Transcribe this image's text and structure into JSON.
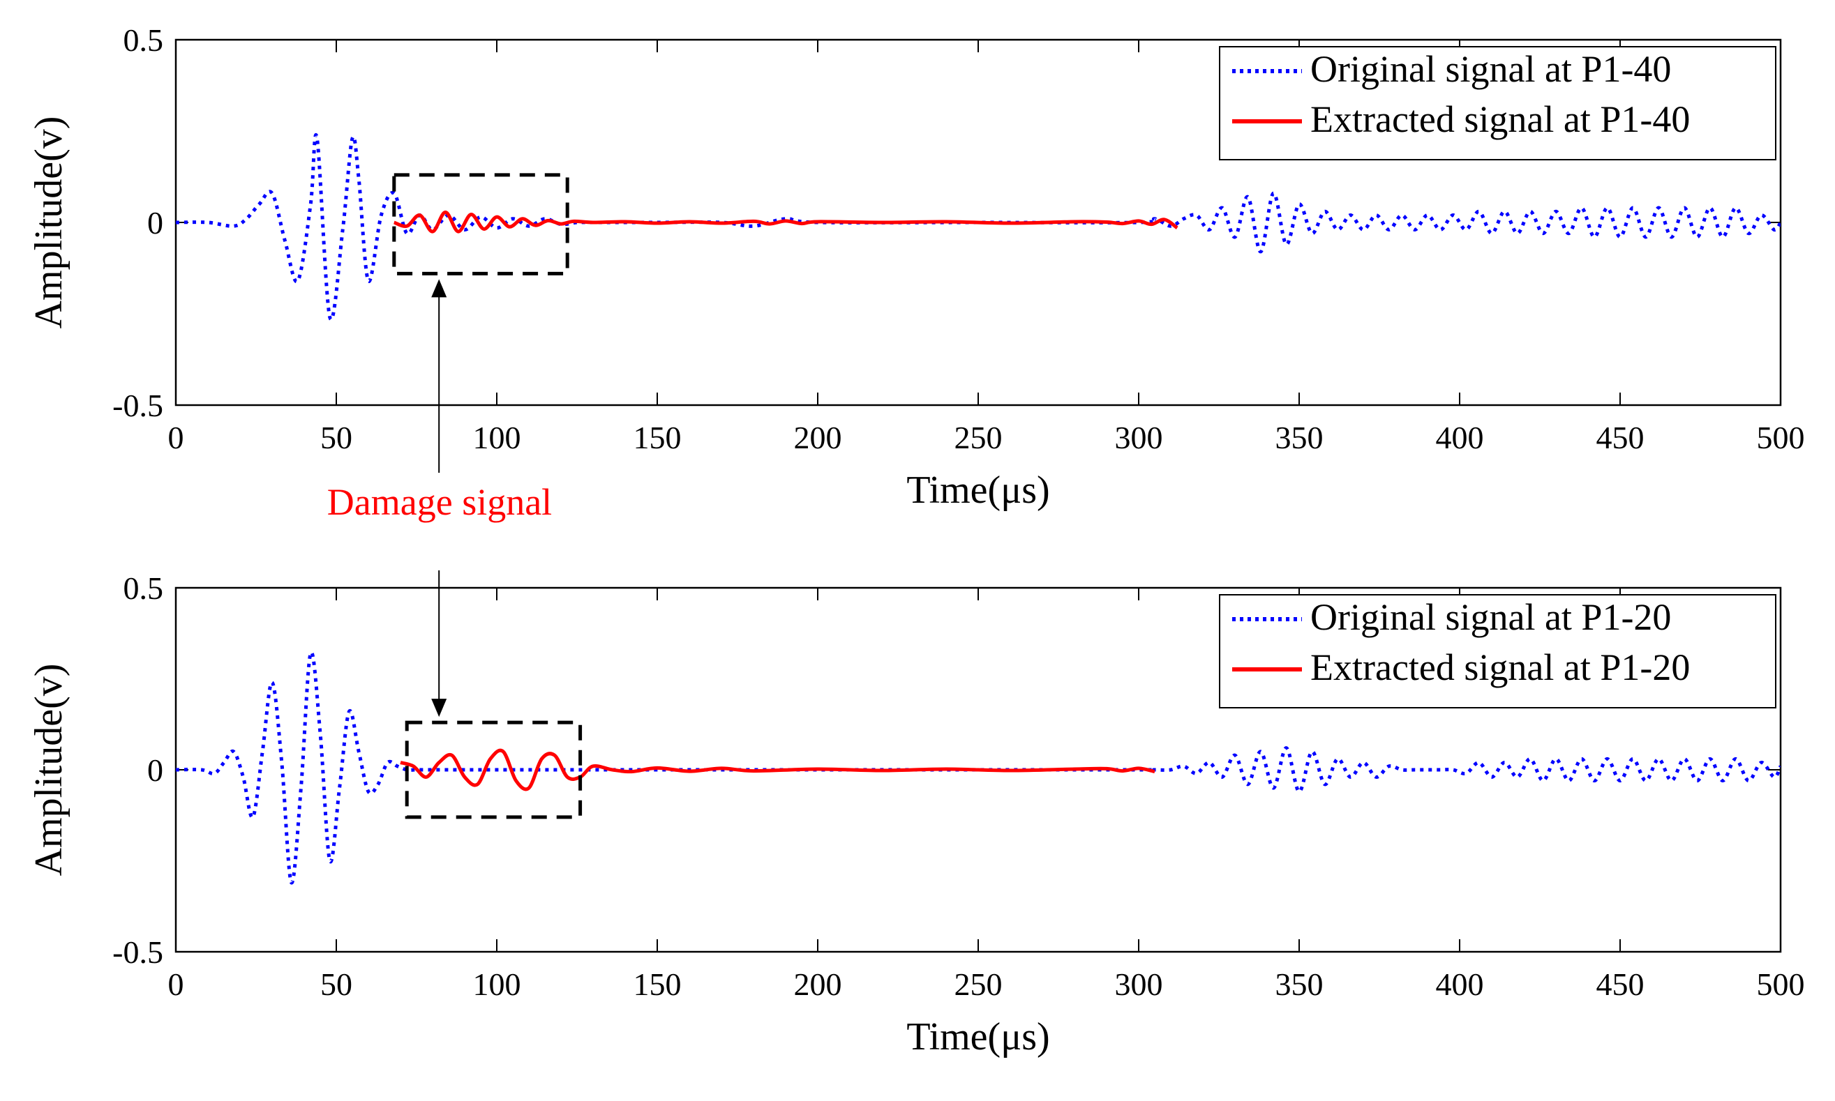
{
  "chart_data": [
    {
      "type": "line",
      "xlabel": "Time(μs)",
      "ylabel": "Amplitude(v)",
      "xlim": [
        0,
        500
      ],
      "ylim": [
        -0.5,
        0.5
      ],
      "x_ticks": [
        "0",
        "50",
        "100",
        "150",
        "200",
        "250",
        "300",
        "350",
        "400",
        "450",
        "500"
      ],
      "y_ticks": [
        "-0.5",
        "0",
        "0.5"
      ],
      "grid": false,
      "legend_position": "top-right",
      "series": [
        {
          "name": "Original signal at P1-40",
          "color": "#0000ff",
          "style": "dotted",
          "x": [
            0,
            10,
            18,
            22,
            26,
            30,
            34,
            38,
            42,
            44,
            48,
            52,
            55,
            57,
            60,
            64,
            68,
            72,
            76,
            80,
            85,
            90,
            95,
            100,
            105,
            110,
            115,
            120,
            125,
            130,
            150,
            170,
            180,
            190,
            200,
            250,
            300,
            305,
            310,
            314,
            318,
            322,
            326,
            330,
            334,
            338,
            342,
            346,
            350,
            354,
            358,
            362,
            366,
            370,
            374,
            378,
            382,
            386,
            390,
            394,
            398,
            402,
            406,
            410,
            414,
            418,
            422,
            426,
            430,
            434,
            438,
            442,
            446,
            450,
            454,
            458,
            462,
            466,
            470,
            474,
            478,
            482,
            486,
            490,
            494,
            498,
            500
          ],
          "y": [
            0,
            0,
            -0.01,
            0.01,
            0.05,
            0.08,
            -0.05,
            -0.16,
            0.05,
            0.23,
            -0.26,
            -0.02,
            0.23,
            0.12,
            -0.16,
            0.02,
            0.08,
            -0.03,
            0.02,
            -0.02,
            0.02,
            -0.02,
            0.015,
            -0.015,
            0.01,
            -0.01,
            0.01,
            -0.005,
            0,
            0,
            0,
            0,
            -0.01,
            0.01,
            0,
            0,
            0,
            0.01,
            -0.01,
            0.01,
            0.02,
            -0.02,
            0.04,
            -0.04,
            0.07,
            -0.08,
            0.08,
            -0.06,
            0.05,
            -0.03,
            0.03,
            -0.02,
            0.02,
            -0.02,
            0.02,
            -0.02,
            0.02,
            -0.02,
            0.02,
            -0.02,
            0.02,
            -0.02,
            0.03,
            -0.03,
            0.03,
            -0.03,
            0.03,
            -0.03,
            0.03,
            -0.03,
            0.04,
            -0.04,
            0.04,
            -0.04,
            0.04,
            -0.04,
            0.04,
            -0.04,
            0.04,
            -0.04,
            0.04,
            -0.04,
            0.04,
            -0.03,
            0.02,
            -0.02,
            0
          ]
        },
        {
          "name": "Extracted signal at P1-40",
          "color": "#ff0000",
          "style": "solid",
          "x": [
            68,
            72,
            76,
            80,
            84,
            88,
            92,
            96,
            100,
            104,
            108,
            112,
            116,
            120,
            124,
            130,
            140,
            150,
            160,
            170,
            180,
            185,
            190,
            195,
            200,
            220,
            240,
            260,
            280,
            290,
            295,
            300,
            304,
            308,
            312
          ],
          "y": [
            0,
            -0.01,
            0.02,
            -0.025,
            0.028,
            -0.025,
            0.022,
            -0.018,
            0.015,
            -0.012,
            0.01,
            -0.008,
            0.005,
            -0.004,
            0.003,
            0,
            0.002,
            -0.002,
            0.002,
            -0.002,
            0.003,
            -0.004,
            0.004,
            -0.003,
            0.002,
            0,
            0.002,
            -0.002,
            0.002,
            0.001,
            -0.003,
            0.004,
            -0.005,
            0.008,
            -0.015
          ]
        }
      ]
    },
    {
      "type": "line",
      "xlabel": "Time(μs)",
      "ylabel": "Amplitude(v)",
      "xlim": [
        0,
        500
      ],
      "ylim": [
        -0.5,
        0.5
      ],
      "x_ticks": [
        "0",
        "50",
        "100",
        "150",
        "200",
        "250",
        "300",
        "350",
        "400",
        "450",
        "500"
      ],
      "y_ticks": [
        "-0.5",
        "0",
        "0.5"
      ],
      "grid": false,
      "legend_position": "top-right",
      "series": [
        {
          "name": "Original signal at P1-20",
          "color": "#0000ff",
          "style": "dotted",
          "x": [
            0,
            8,
            12,
            15,
            18,
            21,
            24,
            27,
            30,
            33,
            36,
            39,
            42,
            45,
            48,
            51,
            54,
            57,
            60,
            63,
            66,
            69,
            72,
            75,
            80,
            85,
            90,
            95,
            100,
            105,
            110,
            115,
            120,
            125,
            130,
            150,
            200,
            250,
            300,
            305,
            310,
            314,
            318,
            322,
            326,
            330,
            334,
            338,
            342,
            346,
            350,
            354,
            358,
            362,
            366,
            370,
            374,
            378,
            382,
            386,
            390,
            394,
            398,
            402,
            406,
            410,
            414,
            418,
            422,
            426,
            430,
            434,
            438,
            442,
            446,
            450,
            454,
            458,
            462,
            466,
            470,
            474,
            478,
            482,
            486,
            490,
            494,
            498,
            500
          ],
          "y": [
            0,
            0,
            -0.01,
            0.02,
            0.05,
            -0.02,
            -0.13,
            0.05,
            0.24,
            0.02,
            -0.31,
            -0.05,
            0.32,
            0.1,
            -0.25,
            -0.05,
            0.16,
            0.05,
            -0.06,
            -0.04,
            0.02,
            0.01,
            0,
            0,
            0,
            0,
            0,
            0,
            0,
            0,
            0,
            0,
            0,
            0,
            0,
            0,
            0,
            0,
            0,
            0,
            0,
            0.01,
            -0.01,
            0.02,
            -0.02,
            0.04,
            -0.04,
            0.05,
            -0.05,
            0.06,
            -0.06,
            0.05,
            -0.04,
            0.03,
            -0.02,
            0.02,
            -0.02,
            0.01,
            0,
            0,
            0,
            0,
            0,
            -0.01,
            0.02,
            -0.02,
            0.02,
            -0.02,
            0.03,
            -0.03,
            0.03,
            -0.03,
            0.03,
            -0.03,
            0.03,
            -0.03,
            0.03,
            -0.03,
            0.03,
            -0.03,
            0.03,
            -0.03,
            0.03,
            -0.03,
            0.03,
            -0.03,
            0.02,
            -0.02,
            0.01
          ]
        },
        {
          "name": "Extracted signal at P1-20",
          "color": "#ff0000",
          "style": "solid",
          "x": [
            70,
            74,
            78,
            82,
            86,
            90,
            94,
            98,
            102,
            106,
            110,
            114,
            118,
            122,
            126,
            130,
            136,
            142,
            150,
            160,
            170,
            180,
            200,
            220,
            240,
            260,
            280,
            290,
            295,
            300,
            305
          ],
          "y": [
            0.02,
            0.01,
            -0.02,
            0.02,
            0.04,
            -0.02,
            -0.04,
            0.03,
            0.05,
            -0.03,
            -0.05,
            0.03,
            0.04,
            -0.02,
            -0.02,
            0.01,
            0,
            -0.005,
            0.005,
            -0.004,
            0.004,
            -0.003,
            0.002,
            -0.002,
            0.002,
            -0.002,
            0.002,
            0.003,
            -0.003,
            0.004,
            -0.005
          ]
        }
      ]
    }
  ],
  "annotation": {
    "text": "Damage signal",
    "color": "#ff0000",
    "box_color": "#000000",
    "boxes": [
      {
        "x0": 68,
        "x1": 122,
        "y0": -0.14,
        "y1": 0.13
      },
      {
        "x0": 72,
        "x1": 126,
        "y0": -0.13,
        "y1": 0.13
      }
    ],
    "arrow_x": 82
  }
}
